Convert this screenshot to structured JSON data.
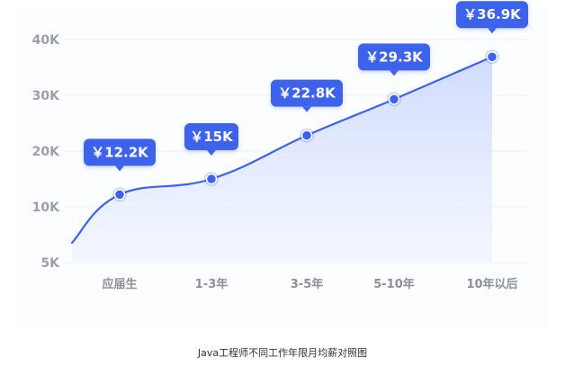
{
  "caption": "Java工程师不同工作年限月均薪对照图",
  "colors": {
    "line": "#3d63ec",
    "badge": "#3d63ec",
    "grid": "#eceef2",
    "area_top": "#cdd9ff",
    "area_bottom": "#eef2ff"
  },
  "chart_data": {
    "type": "line",
    "categories": [
      "应届生",
      "1-3年",
      "3-5年",
      "5-10年",
      "10年以后"
    ],
    "values": [
      12.2,
      15,
      22.8,
      29.3,
      36.9
    ],
    "value_labels": [
      "￥12.2K",
      "￥15K",
      "￥22.8K",
      "￥29.3K",
      "￥36.9K"
    ],
    "y_ticks": [
      5,
      10,
      20,
      30,
      40
    ],
    "y_tick_labels": [
      "5K",
      "10K",
      "20K",
      "30K",
      "40K"
    ],
    "ylim": [
      5,
      40
    ],
    "area_fill": true,
    "grid": true,
    "title": "",
    "xlabel": "",
    "ylabel": ""
  }
}
